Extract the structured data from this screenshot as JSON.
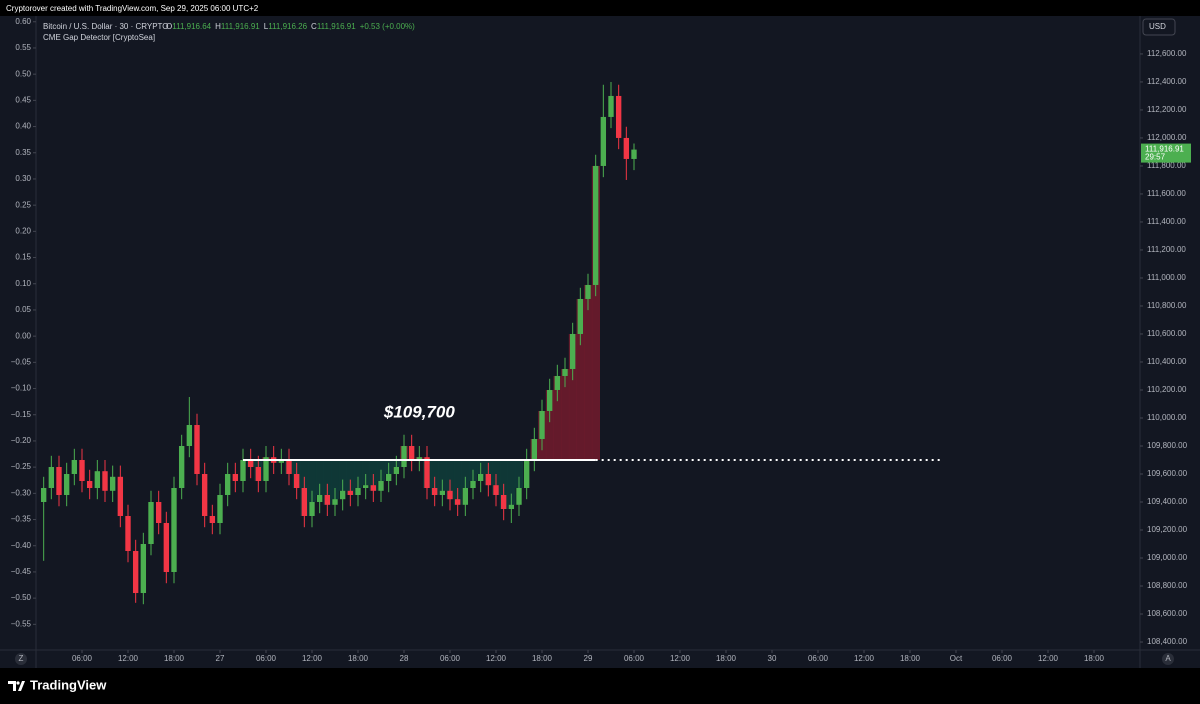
{
  "watermark": "Cryptorover created with TradingView.com, Sep 29, 2025 06:00 UTC+2",
  "brand": "TradingView",
  "scale_buttons": {
    "left": "Z",
    "right": "A"
  },
  "chart_data": {
    "type": "candlestick",
    "title": "Bitcoin / U.S. Dollar · 30 · CRYPTO",
    "ohlc_legend": [
      {
        "label": "O",
        "value": "111,916.64"
      },
      {
        "label": "H",
        "value": "111,916.91"
      },
      {
        "label": "L",
        "value": "111,916.26"
      },
      {
        "label": "C",
        "value": "111,916.91"
      }
    ],
    "change": "+0.53 (+0.00%)",
    "indicator": "CME Gap Detector [CryptoSea]",
    "currency": "USD",
    "up_color": "#4caf50",
    "down_color": "#f23645",
    "x": [
      1,
      2,
      3,
      4,
      5,
      6,
      7,
      8,
      9,
      10,
      11,
      12,
      13,
      14,
      15,
      16,
      17,
      18,
      19,
      20,
      21,
      22,
      23,
      24,
      25,
      26,
      27,
      28,
      29,
      30,
      31,
      32,
      33,
      34,
      35,
      36,
      37,
      38,
      39,
      40,
      41,
      42,
      43,
      44,
      45,
      46,
      47,
      48,
      49,
      50,
      51,
      52,
      53,
      54,
      55,
      56,
      57,
      58,
      59,
      60,
      61,
      62,
      63,
      64,
      65,
      66,
      67,
      68,
      69,
      70,
      71,
      72,
      73,
      74,
      75,
      76,
      77,
      78
    ],
    "open": [
      109400,
      109500,
      109650,
      109450,
      109600,
      109700,
      109550,
      109500,
      109620,
      109480,
      109580,
      109300,
      109050,
      108750,
      109100,
      109400,
      109250,
      108900,
      109500,
      109800,
      109950,
      109600,
      109300,
      109250,
      109450,
      109600,
      109550,
      109700,
      109650,
      109550,
      109720,
      109680,
      109700,
      109600,
      109500,
      109300,
      109400,
      109450,
      109380,
      109420,
      109480,
      109450,
      109500,
      109520,
      109480,
      109550,
      109600,
      109650,
      109800,
      109700,
      109720,
      109500,
      109450,
      109480,
      109420,
      109380,
      109500,
      109550,
      109600,
      109520,
      109450,
      109350,
      109380,
      109500,
      109700,
      109850,
      110050,
      110200,
      110300,
      110350,
      110600,
      110850,
      110950,
      111800,
      112150,
      112300,
      112000,
      111850
    ],
    "high": [
      109580,
      109730,
      109730,
      109680,
      109780,
      109780,
      109630,
      109700,
      109700,
      109660,
      109660,
      109380,
      109130,
      109180,
      109480,
      109480,
      109330,
      109580,
      109880,
      110150,
      110030,
      109680,
      109380,
      109530,
      109680,
      109680,
      109780,
      109780,
      109730,
      109800,
      109800,
      109780,
      109780,
      109680,
      109580,
      109480,
      109530,
      109530,
      109500,
      109560,
      109560,
      109580,
      109600,
      109600,
      109630,
      109680,
      109730,
      109880,
      109880,
      109800,
      109800,
      109580,
      109560,
      109560,
      109500,
      109580,
      109630,
      109680,
      109680,
      109600,
      109530,
      109460,
      109580,
      109780,
      109930,
      110130,
      110280,
      110380,
      110430,
      110680,
      110930,
      111030,
      111880,
      112380,
      112400,
      112380,
      112080,
      111960
    ],
    "low": [
      108980,
      109420,
      109370,
      109370,
      109520,
      109470,
      109420,
      109420,
      109400,
      109400,
      109220,
      108970,
      108680,
      108670,
      109020,
      109170,
      108820,
      108820,
      109420,
      109720,
      109520,
      109220,
      109170,
      109170,
      109370,
      109470,
      109470,
      109570,
      109470,
      109470,
      109600,
      109600,
      109520,
      109420,
      109220,
      109220,
      109320,
      109300,
      109300,
      109340,
      109370,
      109370,
      109420,
      109400,
      109400,
      109470,
      109520,
      109570,
      109620,
      109620,
      109420,
      109370,
      109370,
      109340,
      109300,
      109300,
      109420,
      109470,
      109440,
      109370,
      109270,
      109250,
      109300,
      109420,
      109620,
      109770,
      109970,
      110120,
      110220,
      110270,
      110520,
      110770,
      110870,
      111720,
      112070,
      111920,
      111700,
      111770
    ],
    "close": [
      109500,
      109650,
      109450,
      109600,
      109700,
      109550,
      109500,
      109620,
      109480,
      109580,
      109300,
      109050,
      108750,
      109100,
      109400,
      109250,
      108900,
      109500,
      109800,
      109950,
      109600,
      109300,
      109250,
      109450,
      109600,
      109550,
      109700,
      109650,
      109550,
      109720,
      109680,
      109700,
      109600,
      109500,
      109300,
      109400,
      109450,
      109380,
      109420,
      109480,
      109450,
      109500,
      109520,
      109480,
      109550,
      109600,
      109650,
      109800,
      109700,
      109720,
      109500,
      109450,
      109480,
      109420,
      109380,
      109500,
      109550,
      109600,
      109520,
      109450,
      109350,
      109380,
      109500,
      109700,
      109850,
      110050,
      110200,
      110300,
      110350,
      110600,
      110850,
      110950,
      111800,
      112150,
      112300,
      112000,
      111850,
      111916.91
    ],
    "xlim": [
      0,
      144
    ],
    "xticks": [
      {
        "value": 6,
        "label": "06:00"
      },
      {
        "value": 12,
        "label": "12:00"
      },
      {
        "value": 18,
        "label": "18:00"
      },
      {
        "value": 24,
        "label": "27"
      },
      {
        "value": 30,
        "label": "06:00"
      },
      {
        "value": 36,
        "label": "12:00"
      },
      {
        "value": 42,
        "label": "18:00"
      },
      {
        "value": 48,
        "label": "28"
      },
      {
        "value": 54,
        "label": "06:00"
      },
      {
        "value": 60,
        "label": "12:00"
      },
      {
        "value": 66,
        "label": "18:00"
      },
      {
        "value": 72,
        "label": "29"
      },
      {
        "value": 78,
        "label": "06:00"
      },
      {
        "value": 84,
        "label": "12:00"
      },
      {
        "value": 90,
        "label": "18:00"
      },
      {
        "value": 96,
        "label": "30"
      },
      {
        "value": 102,
        "label": "06:00"
      },
      {
        "value": 108,
        "label": "12:00"
      },
      {
        "value": 114,
        "label": "18:00"
      },
      {
        "value": 120,
        "label": "Oct"
      },
      {
        "value": 126,
        "label": "06:00"
      },
      {
        "value": 132,
        "label": "12:00"
      },
      {
        "value": 138,
        "label": "18:00"
      }
    ],
    "ylim": [
      108343,
      112871
    ],
    "yticks": [
      {
        "value": 108400,
        "label": "108,400.00"
      },
      {
        "value": 108600,
        "label": "108,600.00"
      },
      {
        "value": 108800,
        "label": "108,800.00"
      },
      {
        "value": 109000,
        "label": "109,000.00"
      },
      {
        "value": 109200,
        "label": "109,200.00"
      },
      {
        "value": 109400,
        "label": "109,400.00"
      },
      {
        "value": 109600,
        "label": "109,600.00"
      },
      {
        "value": 109800,
        "label": "109,800.00"
      },
      {
        "value": 110000,
        "label": "110,000.00"
      },
      {
        "value": 110200,
        "label": "110,200.00"
      },
      {
        "value": 110400,
        "label": "110,400.00"
      },
      {
        "value": 110600,
        "label": "110,600.00"
      },
      {
        "value": 110800,
        "label": "110,800.00"
      },
      {
        "value": 111000,
        "label": "111,000.00"
      },
      {
        "value": 111200,
        "label": "111,200.00"
      },
      {
        "value": 111400,
        "label": "111,400.00"
      },
      {
        "value": 111600,
        "label": "111,600.00"
      },
      {
        "value": 111800,
        "label": "111,800.00"
      },
      {
        "value": 112000,
        "label": "112,000.00"
      },
      {
        "value": 112200,
        "label": "112,200.00"
      },
      {
        "value": 112400,
        "label": "112,400.00"
      },
      {
        "value": 112600,
        "label": "112,600.00"
      }
    ],
    "y2lim": [
      -0.599,
      0.611
    ],
    "y2ticks": [
      {
        "value": 0.6,
        "label": "0.60"
      },
      {
        "value": 0.55,
        "label": "0.55"
      },
      {
        "value": 0.5,
        "label": "0.50"
      },
      {
        "value": 0.45,
        "label": "0.45"
      },
      {
        "value": 0.4,
        "label": "0.40"
      },
      {
        "value": 0.35,
        "label": "0.35"
      },
      {
        "value": 0.3,
        "label": "0.30"
      },
      {
        "value": 0.25,
        "label": "0.25"
      },
      {
        "value": 0.2,
        "label": "0.20"
      },
      {
        "value": 0.15,
        "label": "0.15"
      },
      {
        "value": 0.1,
        "label": "0.10"
      },
      {
        "value": 0.05,
        "label": "0.05"
      },
      {
        "value": 0,
        "label": "0.00"
      },
      {
        "value": -0.05,
        "label": "−0.05"
      },
      {
        "value": -0.1,
        "label": "−0.10"
      },
      {
        "value": -0.15,
        "label": "−0.15"
      },
      {
        "value": -0.2,
        "label": "−0.20"
      },
      {
        "value": -0.25,
        "label": "−0.25"
      },
      {
        "value": -0.3,
        "label": "−0.30"
      },
      {
        "value": -0.35,
        "label": "−0.35"
      },
      {
        "value": -0.4,
        "label": "−0.40"
      },
      {
        "value": -0.45,
        "label": "−0.45"
      },
      {
        "value": -0.5,
        "label": "−0.50"
      },
      {
        "value": -0.55,
        "label": "−0.55"
      }
    ],
    "grid": false,
    "gap": {
      "level": 109700,
      "label": "$109,700",
      "start": 27,
      "end": 73,
      "extend_to": 118
    },
    "last_price": {
      "value": 111916.91,
      "label": "111,916.91"
    },
    "countdown": "29:57"
  }
}
